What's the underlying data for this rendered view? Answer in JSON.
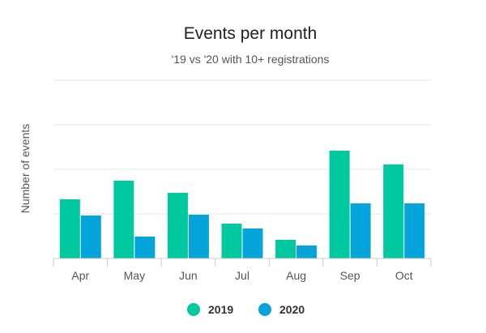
{
  "chart_data": {
    "type": "bar",
    "title": "Events per month",
    "subtitle": "'19 vs '20 with 10+ registrations",
    "xlabel": "",
    "ylabel": "Number of events",
    "categories": [
      "Apr",
      "May",
      "Jun",
      "Jul",
      "Aug",
      "Sep",
      "Oct"
    ],
    "series": [
      {
        "name": "2019",
        "color": "#00c9a0",
        "values": [
          7.3,
          9.6,
          8.1,
          4.3,
          2.3,
          13.3,
          11.6
        ]
      },
      {
        "name": "2020",
        "color": "#05a4da",
        "values": [
          5.3,
          2.7,
          5.4,
          3.7,
          1.6,
          6.8,
          6.8
        ]
      }
    ],
    "ylim": [
      0,
      22
    ],
    "grid": true,
    "legend_position": "bottom"
  }
}
